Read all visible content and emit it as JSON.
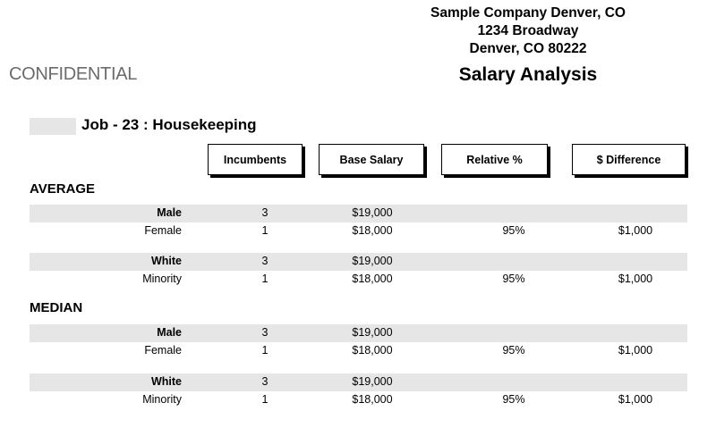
{
  "company": {
    "name": "Sample Company Denver, CO",
    "address": "1234 Broadway",
    "city": "Denver, CO 80222"
  },
  "confidential": "CONFIDENTIAL",
  "report_title": "Salary Analysis",
  "job_title": "Job - 23 : Housekeeping",
  "columns": {
    "incumbents": "Incumbents",
    "base_salary": "Base Salary",
    "relative": "Relative %",
    "difference": "$ Difference"
  },
  "average": {
    "title": "AVERAGE",
    "rows": [
      {
        "label": "Male",
        "incumbents": "3",
        "base": "$19,000",
        "relative": "",
        "difference": ""
      },
      {
        "label": "Female",
        "incumbents": "1",
        "base": "$18,000",
        "relative": "95%",
        "difference": "$1,000"
      },
      {
        "label": "White",
        "incumbents": "3",
        "base": "$19,000",
        "relative": "",
        "difference": ""
      },
      {
        "label": "Minority",
        "incumbents": "1",
        "base": "$18,000",
        "relative": "95%",
        "difference": "$1,000"
      }
    ]
  },
  "median": {
    "title": "MEDIAN",
    "rows": [
      {
        "label": "Male",
        "incumbents": "3",
        "base": "$19,000",
        "relative": "",
        "difference": ""
      },
      {
        "label": "Female",
        "incumbents": "1",
        "base": "$18,000",
        "relative": "95%",
        "difference": "$1,000"
      },
      {
        "label": "White",
        "incumbents": "3",
        "base": "$19,000",
        "relative": "",
        "difference": ""
      },
      {
        "label": "Minority",
        "incumbents": "1",
        "base": "$18,000",
        "relative": "95%",
        "difference": "$1,000"
      }
    ]
  }
}
